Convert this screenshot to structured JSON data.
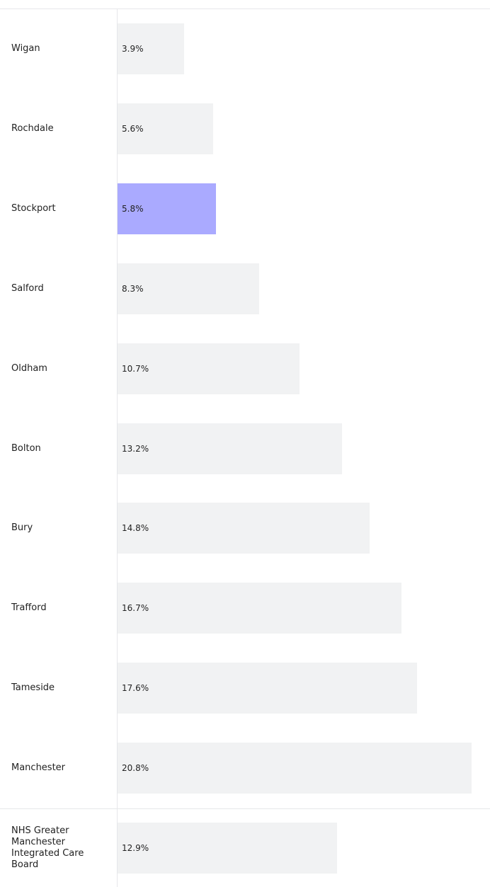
{
  "chart_data": {
    "type": "bar",
    "orientation": "horizontal",
    "categories": [
      "Wigan",
      "Rochdale",
      "Stockport",
      "Salford",
      "Oldham",
      "Bolton",
      "Bury",
      "Trafford",
      "Tameside",
      "Manchester",
      "NHS Greater Manchester Integrated Care Board"
    ],
    "values": [
      3.9,
      5.6,
      5.8,
      8.3,
      10.7,
      13.2,
      14.8,
      16.7,
      17.6,
      20.8,
      12.9
    ],
    "value_labels": [
      "3.9%",
      "5.6%",
      "5.8%",
      "8.3%",
      "10.7%",
      "13.2%",
      "14.8%",
      "16.7%",
      "17.6%",
      "20.8%",
      "12.9%"
    ],
    "colors": [
      "#f1f2f3",
      "#f1f2f3",
      "#aaaaff",
      "#f1f2f3",
      "#f1f2f3",
      "#f1f2f3",
      "#f1f2f3",
      "#f1f2f3",
      "#f1f2f3",
      "#f1f2f3",
      "#f1f2f3"
    ]
  }
}
